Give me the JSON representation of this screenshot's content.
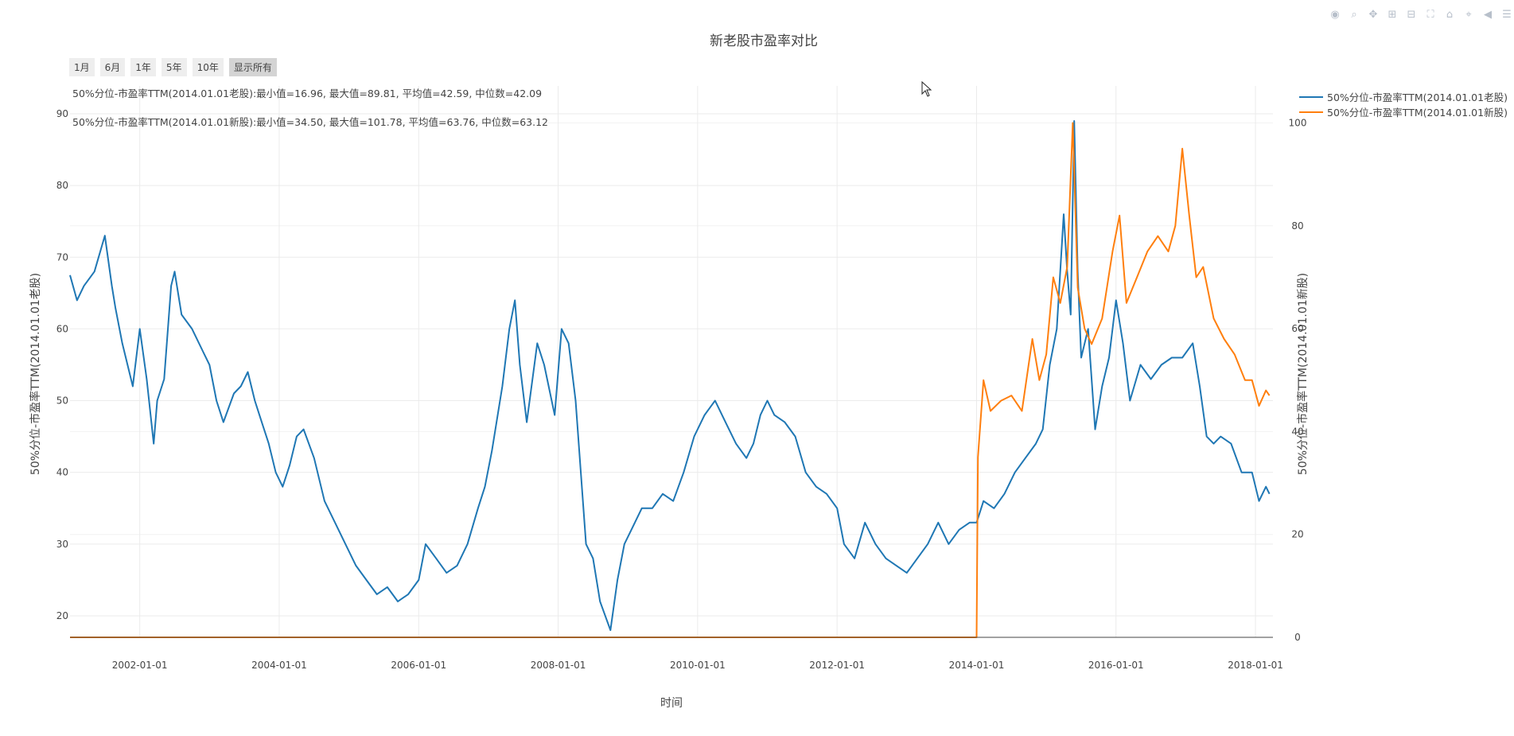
{
  "modebar": {
    "icons": [
      "camera-icon",
      "zoom-icon",
      "pan-icon",
      "zoom-in-icon",
      "zoom-out-icon",
      "autoscale-icon",
      "home-icon",
      "spike-lines-icon",
      "hover-closest-icon",
      "hover-compare-icon"
    ],
    "glyphs": [
      "◉",
      "⌕",
      "✥",
      "⊞",
      "⊟",
      "⛶",
      "⌂",
      "⌖",
      "◀",
      "☰"
    ]
  },
  "range_selector": {
    "buttons": [
      "1月",
      "6月",
      "1年",
      "5年",
      "10年",
      "显示所有"
    ],
    "active": "显示所有"
  },
  "chart_data": {
    "type": "line",
    "title": "新老股市盈率对比",
    "xlabel": "时间",
    "ylabel_left": "50%分位-市盈率TTM(2014.01.01老股)",
    "ylabel_right": "50%分位-市盈率TTM(2014.01.01新股)",
    "x_range": [
      2001.0,
      2018.25
    ],
    "x_ticks": [
      2002,
      2004,
      2006,
      2008,
      2010,
      2012,
      2014,
      2016,
      2018
    ],
    "x_tick_labels": [
      "2002-01-01",
      "2004-01-01",
      "2006-01-01",
      "2008-01-01",
      "2010-01-01",
      "2012-01-01",
      "2014-01-01",
      "2016-01-01",
      "2018-01-01"
    ],
    "y_left_range": [
      17,
      90
    ],
    "y_left_ticks": [
      20,
      30,
      40,
      50,
      60,
      70,
      80,
      90
    ],
    "y_right_range": [
      0,
      101.78
    ],
    "y_right_ticks": [
      0,
      20,
      40,
      60,
      80,
      100
    ],
    "legend_position": "top-right",
    "annotations": [
      "50%分位-市盈率TTM(2014.01.01老股):最小值=16.96, 最大值=89.81, 平均值=42.59, 中位数=42.09",
      "50%分位-市盈率TTM(2014.01.01新股):最小值=34.50, 最大值=101.78, 平均值=63.76, 中位数=63.12"
    ],
    "series": [
      {
        "name": "50%分位-市盈率TTM(2014.01.01老股)",
        "axis": "left",
        "color": "#1f77b4",
        "x": [
          2001.0,
          2001.1,
          2001.2,
          2001.35,
          2001.5,
          2001.6,
          2001.65,
          2001.75,
          2001.9,
          2002.0,
          2002.1,
          2002.2,
          2002.25,
          2002.35,
          2002.45,
          2002.5,
          2002.6,
          2002.75,
          2002.9,
          2003.0,
          2003.1,
          2003.2,
          2003.35,
          2003.45,
          2003.55,
          2003.65,
          2003.75,
          2003.85,
          2003.95,
          2004.05,
          2004.15,
          2004.25,
          2004.35,
          2004.5,
          2004.65,
          2004.8,
          2004.95,
          2005.1,
          2005.25,
          2005.4,
          2005.55,
          2005.7,
          2005.85,
          2006.0,
          2006.1,
          2006.25,
          2006.4,
          2006.55,
          2006.7,
          2006.85,
          2006.95,
          2007.05,
          2007.2,
          2007.3,
          2007.38,
          2007.45,
          2007.55,
          2007.7,
          2007.8,
          2007.95,
          2008.05,
          2008.15,
          2008.25,
          2008.4,
          2008.5,
          2008.6,
          2008.75,
          2008.85,
          2008.95,
          2009.05,
          2009.2,
          2009.35,
          2009.5,
          2009.65,
          2009.8,
          2009.95,
          2010.1,
          2010.25,
          2010.4,
          2010.55,
          2010.7,
          2010.8,
          2010.9,
          2011.0,
          2011.1,
          2011.25,
          2011.4,
          2011.55,
          2011.7,
          2011.85,
          2012.0,
          2012.1,
          2012.25,
          2012.4,
          2012.55,
          2012.7,
          2012.85,
          2013.0,
          2013.15,
          2013.3,
          2013.45,
          2013.6,
          2013.75,
          2013.9,
          2014.0,
          2014.1,
          2014.25,
          2014.4,
          2014.55,
          2014.7,
          2014.85,
          2014.95,
          2015.05,
          2015.15,
          2015.25,
          2015.3,
          2015.35,
          2015.4,
          2015.45,
          2015.5,
          2015.6,
          2015.7,
          2015.8,
          2015.9,
          2016.0,
          2016.1,
          2016.2,
          2016.35,
          2016.5,
          2016.65,
          2016.8,
          2016.95,
          2017.1,
          2017.2,
          2017.3,
          2017.4,
          2017.5,
          2017.65,
          2017.8,
          2017.95,
          2018.05,
          2018.15,
          2018.2
        ],
        "y": [
          67.5,
          64,
          66,
          68,
          73,
          66,
          63,
          58,
          52,
          60,
          53,
          44,
          50,
          53,
          66,
          68,
          62,
          60,
          57,
          55,
          50,
          47,
          51,
          52,
          54,
          50,
          47,
          44,
          40,
          38,
          41,
          45,
          46,
          42,
          36,
          33,
          30,
          27,
          25,
          23,
          24,
          22,
          23,
          25,
          30,
          28,
          26,
          27,
          30,
          35,
          38,
          43,
          52,
          60,
          64,
          55,
          47,
          58,
          55,
          48,
          60,
          58,
          50,
          30,
          28,
          22,
          18,
          25,
          30,
          32,
          35,
          35,
          37,
          36,
          40,
          45,
          48,
          50,
          47,
          44,
          42,
          44,
          48,
          50,
          48,
          47,
          45,
          40,
          38,
          37,
          35,
          30,
          28,
          33,
          30,
          28,
          27,
          26,
          28,
          30,
          33,
          30,
          32,
          33,
          33,
          36,
          35,
          37,
          40,
          42,
          44,
          46,
          55,
          60,
          76,
          68,
          62,
          89,
          68,
          56,
          60,
          46,
          52,
          56,
          64,
          58,
          50,
          55,
          53,
          55,
          56,
          56,
          58,
          52,
          45,
          44,
          45,
          44,
          40,
          40,
          36,
          38,
          37
        ]
      },
      {
        "name": "50%分位-市盈率TTM(2014.01.01新股)",
        "axis": "right",
        "color": "#ff7f0e",
        "x": [
          2001.0,
          2014.0,
          2014.02,
          2014.1,
          2014.2,
          2014.35,
          2014.5,
          2014.65,
          2014.8,
          2014.9,
          2015.0,
          2015.1,
          2015.2,
          2015.3,
          2015.38,
          2015.45,
          2015.55,
          2015.65,
          2015.8,
          2015.95,
          2016.05,
          2016.15,
          2016.3,
          2016.45,
          2016.6,
          2016.75,
          2016.85,
          2016.95,
          2017.05,
          2017.15,
          2017.25,
          2017.4,
          2017.55,
          2017.7,
          2017.85,
          2017.95,
          2018.05,
          2018.15,
          2018.2
        ],
        "y": [
          0,
          0,
          35,
          50,
          44,
          46,
          47,
          44,
          58,
          50,
          55,
          70,
          65,
          72,
          100,
          68,
          60,
          57,
          62,
          75,
          82,
          65,
          70,
          75,
          78,
          75,
          80,
          95,
          82,
          70,
          72,
          62,
          58,
          55,
          50,
          50,
          45,
          48,
          47
        ]
      }
    ]
  }
}
